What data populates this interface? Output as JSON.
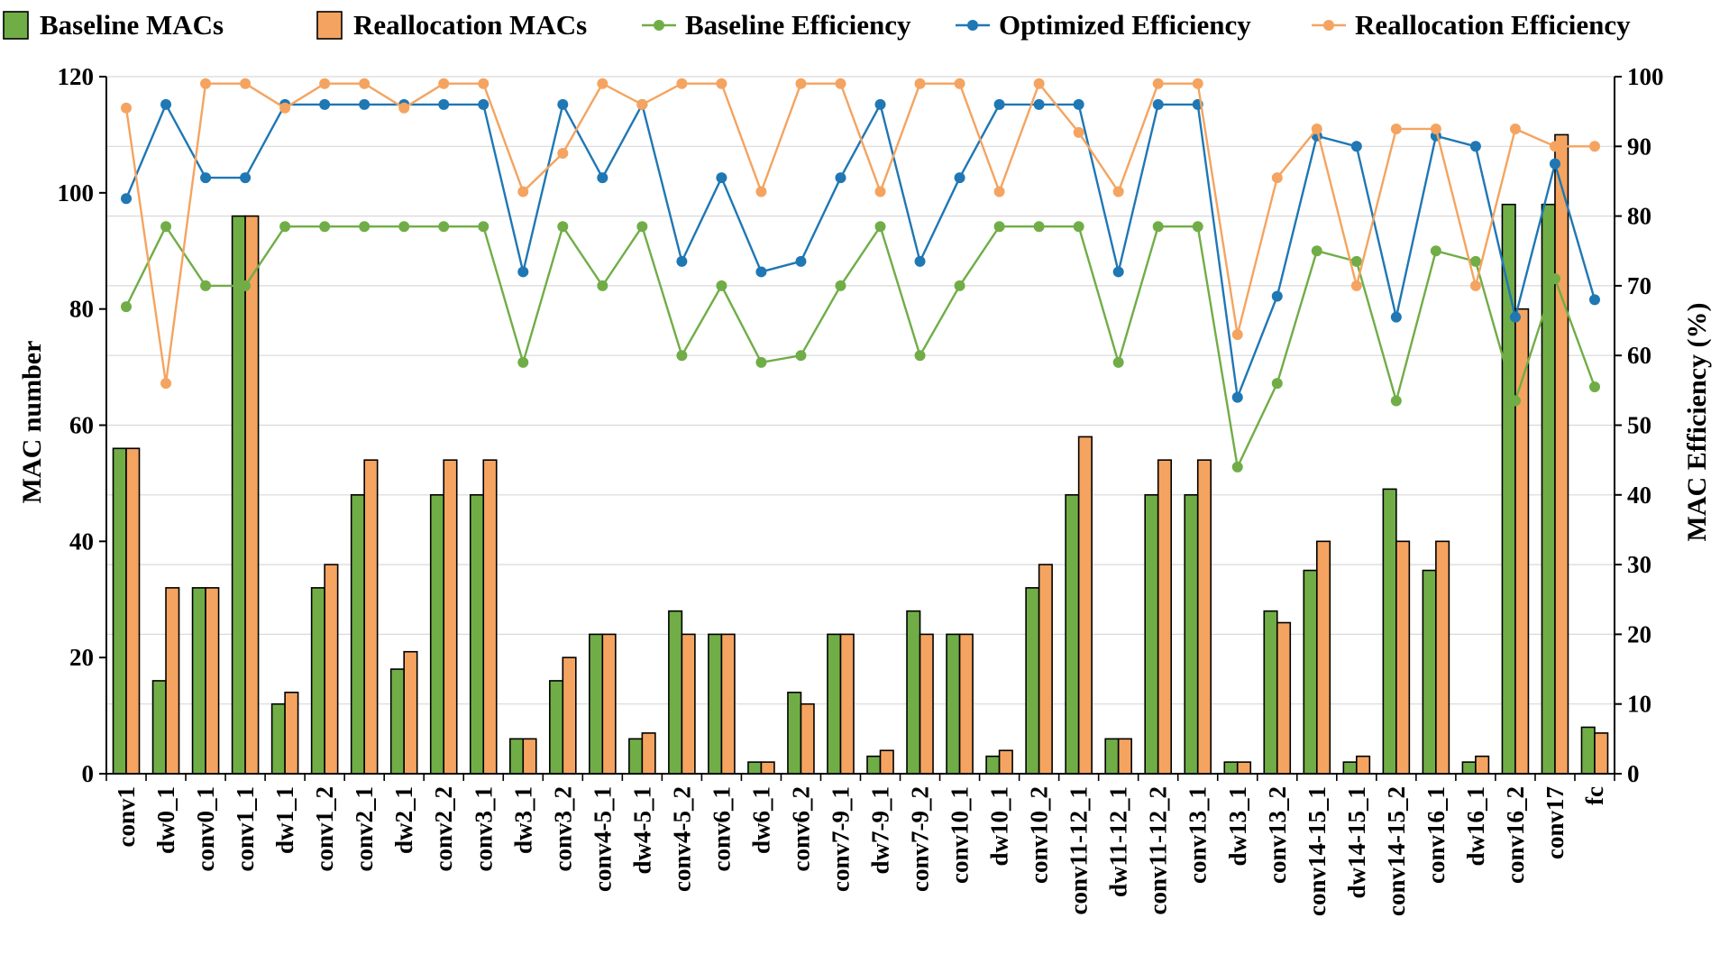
{
  "chart_data": {
    "type": "bar+line",
    "xlabel": "",
    "ylabel_left": "MAC number",
    "ylabel_right": "MAC Efficiency (%)",
    "ylim_left": [
      0,
      120
    ],
    "ylim_right": [
      0,
      100
    ],
    "yticks_left": [
      "0",
      "20",
      "40",
      "60",
      "80",
      "100",
      "120"
    ],
    "yticks_right": [
      "0",
      "10",
      "20",
      "30",
      "40",
      "50",
      "60",
      "70",
      "80",
      "90",
      "100"
    ],
    "grid": "horizontal",
    "legend_position": "top",
    "categories": [
      "conv1",
      "dw0_1",
      "conv0_1",
      "conv1_1",
      "dw1_1",
      "conv1_2",
      "conv2_1",
      "dw2_1",
      "conv2_2",
      "conv3_1",
      "dw3_1",
      "conv3_2",
      "conv4-5_1",
      "dw4-5_1",
      "conv4-5_2",
      "conv6_1",
      "dw6_1",
      "conv6_2",
      "conv7-9_1",
      "dw7-9_1",
      "conv7-9_2",
      "conv10_1",
      "dw10_1",
      "conv10_2",
      "conv11-12_1",
      "dw11-12_1",
      "conv11-12_2",
      "conv13_1",
      "dw13_1",
      "conv13_2",
      "conv14-15_1",
      "dw14-15_1",
      "conv14-15_2",
      "conv16_1",
      "dw16_1",
      "conv16_2",
      "conv17",
      "fc"
    ],
    "bar_series": [
      {
        "name": "Baseline MACs",
        "color": "#70ad47",
        "values": [
          56,
          16,
          32,
          96,
          12,
          32,
          48,
          18,
          48,
          48,
          6,
          16,
          24,
          6,
          28,
          24,
          2,
          14,
          24,
          3,
          28,
          24,
          3,
          32,
          48,
          6,
          48,
          48,
          2,
          28,
          35,
          2,
          49,
          35,
          2,
          98,
          98,
          8
        ]
      },
      {
        "name": "Reallocation MACs",
        "color": "#f4a460",
        "values": [
          56,
          32,
          32,
          96,
          14,
          36,
          54,
          21,
          54,
          54,
          6,
          20,
          24,
          7,
          24,
          24,
          2,
          12,
          24,
          4,
          24,
          24,
          4,
          36,
          58,
          6,
          54,
          54,
          2,
          26,
          40,
          3,
          40,
          40,
          3,
          80,
          110,
          7
        ]
      }
    ],
    "line_series": [
      {
        "name": "Baseline Efficiency",
        "color": "#70ad47",
        "axis": "right",
        "values": [
          67,
          78.5,
          70,
          70,
          78.5,
          78.5,
          78.5,
          78.5,
          78.5,
          78.5,
          59,
          78.5,
          70,
          78.5,
          60,
          70,
          59,
          60,
          70,
          78.5,
          60,
          70,
          78.5,
          78.5,
          78.5,
          59,
          78.5,
          78.5,
          44,
          56,
          75,
          73.5,
          53.5,
          75,
          73.5,
          53.5,
          71,
          55.5
        ]
      },
      {
        "name": "Optimized Efficiency",
        "color": "#1f77b4",
        "axis": "right",
        "values": [
          82.5,
          96,
          85.5,
          85.5,
          96,
          96,
          96,
          96,
          96,
          96,
          72,
          96,
          85.5,
          96,
          73.5,
          85.5,
          72,
          73.5,
          85.5,
          96,
          73.5,
          85.5,
          96,
          96,
          96,
          72,
          96,
          96,
          54,
          68.5,
          91.5,
          90,
          65.5,
          91.5,
          90,
          65.5,
          87.5,
          68
        ]
      },
      {
        "name": "Reallocation Efficiency",
        "color": "#f4a460",
        "axis": "right",
        "values": [
          95.5,
          56,
          99,
          99,
          95.5,
          99,
          99,
          95.5,
          99,
          99,
          83.5,
          89,
          99,
          96,
          99,
          99,
          83.5,
          99,
          99,
          83.5,
          99,
          99,
          83.5,
          99,
          92,
          83.5,
          99,
          99,
          63,
          85.5,
          92.5,
          70,
          92.5,
          92.5,
          70,
          92.5,
          90,
          90
        ]
      }
    ]
  }
}
